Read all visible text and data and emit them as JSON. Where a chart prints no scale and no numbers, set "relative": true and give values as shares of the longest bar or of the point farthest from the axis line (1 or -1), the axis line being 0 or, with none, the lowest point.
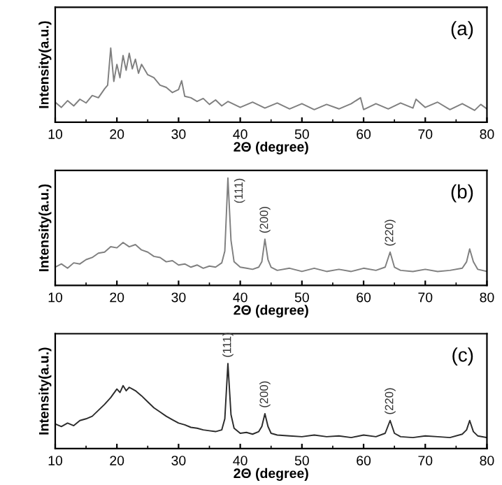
{
  "chart_data": [
    {
      "type": "line",
      "relative": true,
      "xlabel": "2Θ (degree)",
      "ylabel": "Intensity(a.u.)",
      "xlim": [
        10,
        80
      ],
      "xticks": [
        10,
        20,
        30,
        40,
        50,
        60,
        70,
        80
      ],
      "tick_labels": "x",
      "grid": false,
      "legend": false,
      "marker": "none",
      "line_style": "solid",
      "annotations": [
        "(a)"
      ],
      "series": [
        {
          "color": "#7f7f7f",
          "x": [
            10,
            11,
            12,
            13,
            14,
            15,
            16,
            17,
            18,
            18.5,
            19,
            19.5,
            20,
            20.5,
            21,
            21.5,
            22,
            22.5,
            23,
            23.5,
            24,
            25,
            26,
            27,
            28,
            29,
            30,
            30.5,
            31,
            32,
            33,
            34,
            35,
            36,
            37,
            38,
            40,
            42,
            44,
            46,
            48,
            50,
            52,
            54,
            56,
            58,
            59.5,
            60,
            62,
            64,
            66,
            68,
            68.5,
            70,
            72,
            74,
            76,
            78,
            79,
            80
          ],
          "values": [
            0.27,
            0.2,
            0.29,
            0.22,
            0.31,
            0.26,
            0.36,
            0.33,
            0.45,
            0.5,
            1.0,
            0.55,
            0.78,
            0.6,
            0.9,
            0.7,
            0.93,
            0.72,
            0.85,
            0.66,
            0.78,
            0.64,
            0.6,
            0.5,
            0.47,
            0.4,
            0.44,
            0.56,
            0.35,
            0.33,
            0.28,
            0.32,
            0.24,
            0.3,
            0.22,
            0.28,
            0.2,
            0.27,
            0.19,
            0.26,
            0.18,
            0.25,
            0.17,
            0.24,
            0.18,
            0.25,
            0.33,
            0.17,
            0.25,
            0.18,
            0.26,
            0.19,
            0.31,
            0.2,
            0.27,
            0.17,
            0.25,
            0.16,
            0.24,
            0.18
          ]
        }
      ]
    },
    {
      "type": "line",
      "relative": true,
      "xlabel": "2Θ (degree)",
      "ylabel": "Intensity(a.u.)",
      "xlim": [
        10,
        80
      ],
      "xticks": [
        10,
        20,
        30,
        40,
        50,
        60,
        70,
        80
      ],
      "tick_labels": "x",
      "grid": false,
      "legend": false,
      "marker": "none",
      "line_style": "solid",
      "annotations": [
        "(b)",
        {
          "text": "(111)",
          "x": 38,
          "y": 1.0
        },
        {
          "text": "(200)",
          "x": 44,
          "y": 0.43
        },
        {
          "text": "(220)",
          "x": 64.3,
          "y": 0.31
        }
      ],
      "series": [
        {
          "color": "#7f7f7f",
          "x": [
            10,
            11,
            12,
            13,
            14,
            15,
            16,
            17,
            18,
            19,
            20,
            21,
            22,
            23,
            24,
            25,
            26,
            27,
            28,
            29,
            30,
            31,
            32,
            33,
            34,
            35,
            36,
            37,
            37.5,
            38,
            38.5,
            39,
            40,
            41,
            42,
            43,
            43.5,
            44,
            44.5,
            45,
            46,
            48,
            50,
            52,
            54,
            56,
            58,
            60,
            62,
            63.5,
            64.3,
            65,
            66,
            68,
            70,
            72,
            74,
            76,
            76.7,
            77.2,
            77.8,
            78.5,
            80
          ],
          "values": [
            0.17,
            0.2,
            0.16,
            0.21,
            0.2,
            0.24,
            0.26,
            0.3,
            0.31,
            0.36,
            0.35,
            0.4,
            0.36,
            0.38,
            0.33,
            0.31,
            0.27,
            0.26,
            0.22,
            0.23,
            0.19,
            0.2,
            0.17,
            0.19,
            0.16,
            0.18,
            0.17,
            0.21,
            0.32,
            1.0,
            0.42,
            0.22,
            0.17,
            0.16,
            0.15,
            0.17,
            0.22,
            0.43,
            0.24,
            0.17,
            0.14,
            0.16,
            0.13,
            0.16,
            0.13,
            0.15,
            0.13,
            0.16,
            0.14,
            0.17,
            0.31,
            0.17,
            0.14,
            0.13,
            0.15,
            0.13,
            0.14,
            0.16,
            0.22,
            0.34,
            0.22,
            0.15,
            0.13
          ]
        }
      ]
    },
    {
      "type": "line",
      "relative": true,
      "xlabel": "2Θ (degree)",
      "ylabel": "Intensity(a.u.)",
      "xlim": [
        10,
        80
      ],
      "xticks": [
        10,
        20,
        30,
        40,
        50,
        60,
        70,
        80
      ],
      "tick_labels": "x",
      "grid": false,
      "legend": false,
      "marker": "none",
      "line_style": "solid",
      "annotations": [
        "(c)",
        {
          "text": "(111)",
          "x": 38,
          "y": 1.0
        },
        {
          "text": "(200)",
          "x": 44,
          "y": 0.41
        },
        {
          "text": "(220)",
          "x": 64.3,
          "y": 0.33
        }
      ],
      "series": [
        {
          "color": "#2b2b2b",
          "x": [
            10,
            11,
            12,
            13,
            14,
            15,
            16,
            17,
            18,
            19,
            20,
            20.5,
            21,
            21.5,
            22,
            22.5,
            23,
            24,
            25,
            26,
            27,
            28,
            29,
            30,
            31,
            32,
            33,
            34,
            35,
            36,
            37,
            37.5,
            38,
            38.5,
            39,
            40,
            41,
            42,
            43,
            43.5,
            44,
            44.5,
            45,
            46,
            48,
            50,
            52,
            54,
            56,
            58,
            60,
            62,
            63.5,
            64.3,
            65,
            66,
            68,
            70,
            72,
            74,
            76,
            76.7,
            77.2,
            77.8,
            78.5,
            80
          ],
          "values": [
            0.29,
            0.26,
            0.3,
            0.27,
            0.33,
            0.35,
            0.38,
            0.45,
            0.52,
            0.6,
            0.7,
            0.66,
            0.74,
            0.68,
            0.72,
            0.7,
            0.68,
            0.62,
            0.55,
            0.48,
            0.43,
            0.38,
            0.34,
            0.3,
            0.28,
            0.25,
            0.24,
            0.22,
            0.21,
            0.2,
            0.22,
            0.35,
            1.0,
            0.4,
            0.24,
            0.18,
            0.19,
            0.17,
            0.2,
            0.26,
            0.41,
            0.26,
            0.18,
            0.16,
            0.15,
            0.14,
            0.16,
            0.14,
            0.15,
            0.13,
            0.16,
            0.14,
            0.18,
            0.33,
            0.18,
            0.14,
            0.13,
            0.15,
            0.14,
            0.13,
            0.17,
            0.22,
            0.33,
            0.2,
            0.15,
            0.13
          ]
        }
      ]
    }
  ]
}
